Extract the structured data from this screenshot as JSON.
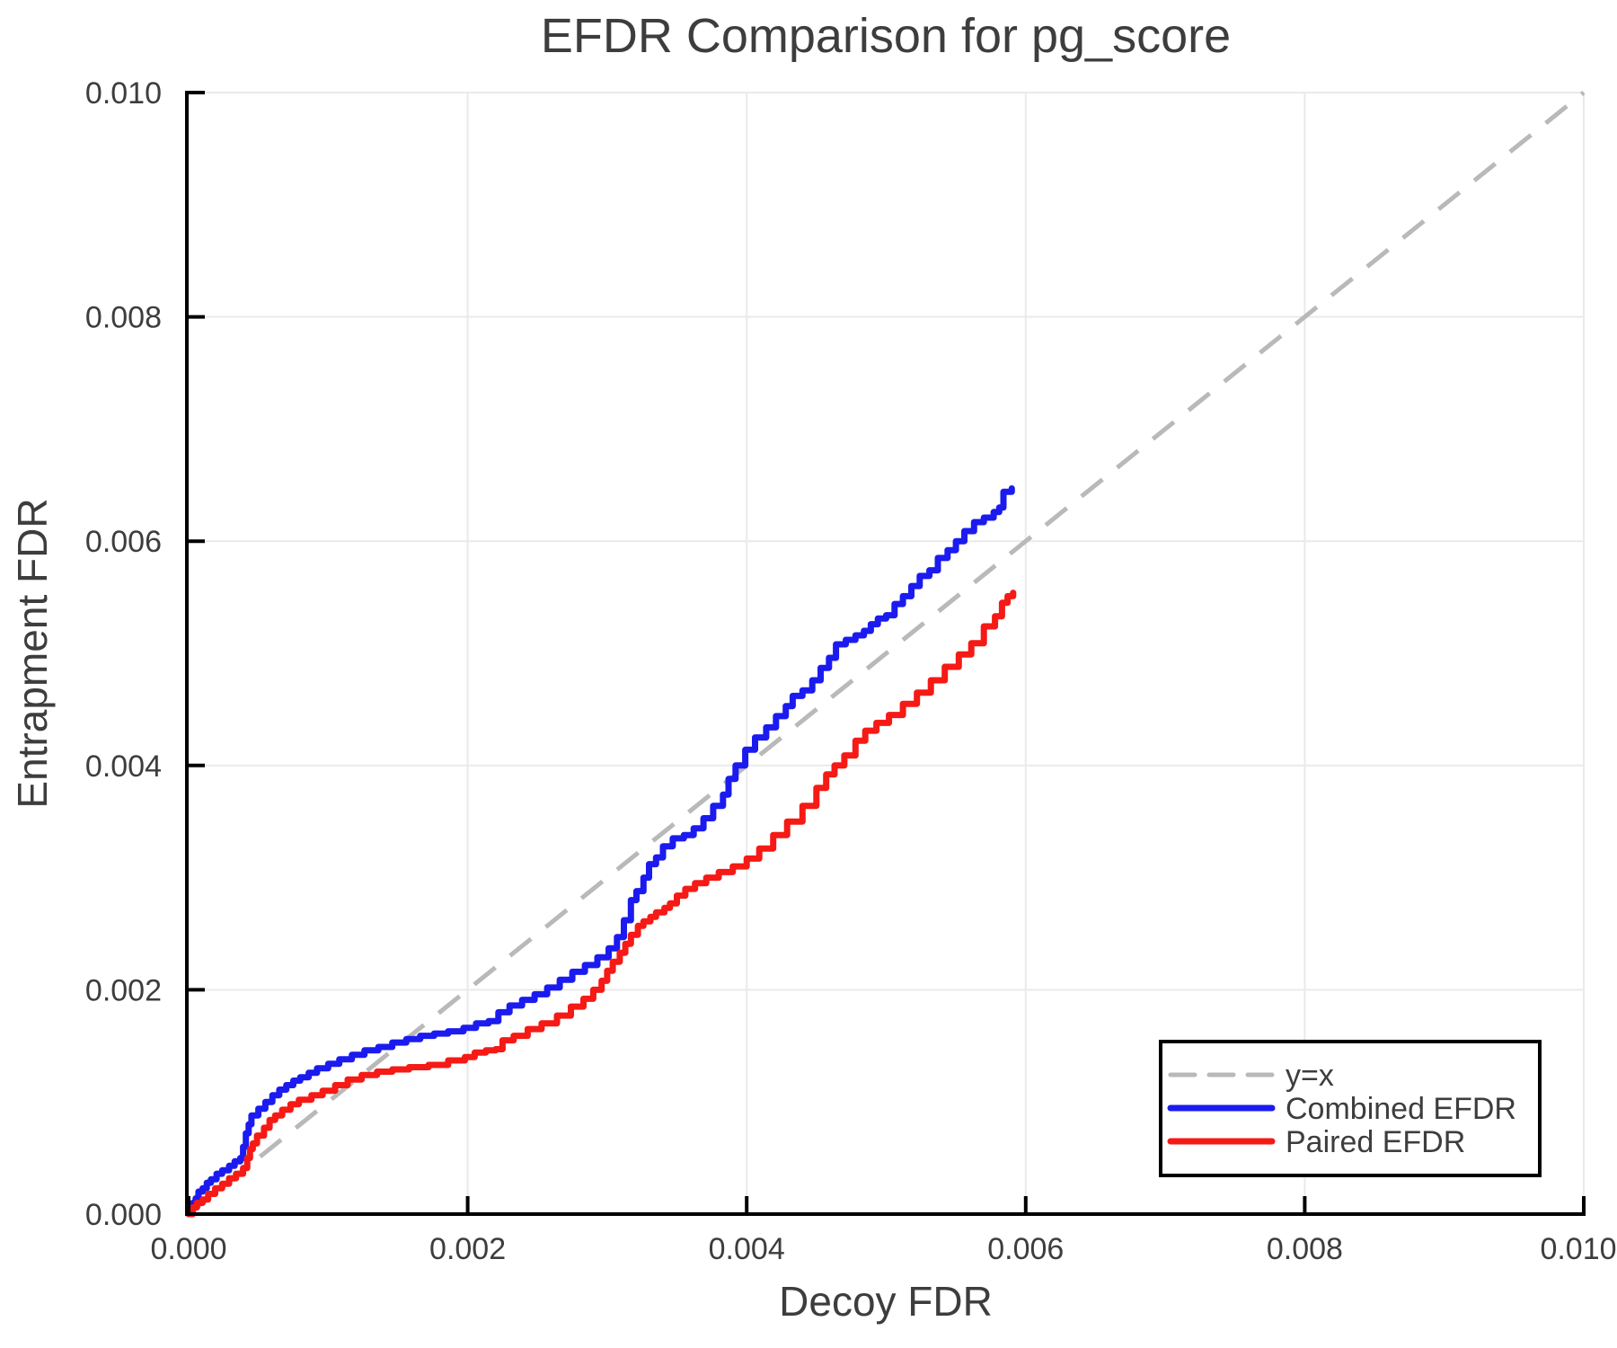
{
  "title": "EFDR Comparison for pg_score",
  "axes": {
    "x": {
      "label": "Decoy FDR",
      "tick_labels": [
        "0.000",
        "0.002",
        "0.004",
        "0.006",
        "0.008",
        "0.010"
      ],
      "tick_values": [
        0,
        0.002,
        0.004,
        0.006,
        0.008,
        0.01
      ]
    },
    "y": {
      "label": "Entrapment FDR",
      "tick_labels": [
        "0.000",
        "0.002",
        "0.004",
        "0.006",
        "0.008",
        "0.010"
      ],
      "tick_values": [
        0,
        0.002,
        0.004,
        0.006,
        0.008,
        0.01
      ]
    }
  },
  "legend": {
    "entries": [
      {
        "label": "y=x",
        "color": "#b9b9b9",
        "dashed": true
      },
      {
        "label": "Combined EFDR",
        "color": "#1b1bef",
        "dashed": false
      },
      {
        "label": "Paired EFDR",
        "color": "#f51a15",
        "dashed": false
      }
    ]
  },
  "colors": {
    "combined": "#1b1bef",
    "paired": "#f51a15",
    "reference": "#b9b9b9",
    "grid": "#eaeaea",
    "text": "#3d3d3d",
    "spine": "#000000"
  },
  "chart_data": {
    "type": "line",
    "title": "EFDR Comparison for pg_score",
    "xlabel": "Decoy FDR",
    "ylabel": "Entrapment FDR",
    "xlim": [
      0,
      0.01
    ],
    "ylim": [
      0,
      0.01
    ],
    "grid": true,
    "legend_position": "lower right",
    "reference_line": {
      "name": "y=x",
      "points": [
        [
          0,
          0
        ],
        [
          0.01,
          0.01
        ]
      ]
    },
    "series": [
      {
        "name": "Combined EFDR",
        "color": "#1b1bef",
        "style": "step",
        "points": [
          [
            0.0,
            0.0
          ],
          [
            2e-05,
            6e-05
          ],
          [
            3e-05,
            0.0001
          ],
          [
            5e-05,
            0.00014
          ],
          [
            7e-05,
            0.0002
          ],
          [
            0.0001,
            0.00023
          ],
          [
            0.00013,
            0.00028
          ],
          [
            0.00016,
            0.00031
          ],
          [
            0.0002,
            0.00036
          ],
          [
            0.00024,
            0.00039
          ],
          [
            0.00029,
            0.00043
          ],
          [
            0.00033,
            0.00047
          ],
          [
            0.00037,
            0.0005
          ],
          [
            0.00039,
            0.0006
          ],
          [
            0.00041,
            0.00072
          ],
          [
            0.00043,
            0.0008
          ],
          [
            0.00045,
            0.00088
          ],
          [
            0.0005,
            0.00094
          ],
          [
            0.00055,
            0.001
          ],
          [
            0.0006,
            0.00106
          ],
          [
            0.00065,
            0.00111
          ],
          [
            0.0007,
            0.00115
          ],
          [
            0.00075,
            0.00119
          ],
          [
            0.0008,
            0.00122
          ],
          [
            0.00086,
            0.00126
          ],
          [
            0.00092,
            0.0013
          ],
          [
            0.001,
            0.00134
          ],
          [
            0.00108,
            0.00138
          ],
          [
            0.00117,
            0.00142
          ],
          [
            0.00126,
            0.00146
          ],
          [
            0.00136,
            0.00149
          ],
          [
            0.00146,
            0.00153
          ],
          [
            0.00156,
            0.00156
          ],
          [
            0.00166,
            0.00159
          ],
          [
            0.00176,
            0.00161
          ],
          [
            0.00186,
            0.00163
          ],
          [
            0.00197,
            0.00166
          ],
          [
            0.00206,
            0.0017
          ],
          [
            0.00215,
            0.00172
          ],
          [
            0.00222,
            0.0018
          ],
          [
            0.0023,
            0.00186
          ],
          [
            0.00239,
            0.00191
          ],
          [
            0.00248,
            0.00196
          ],
          [
            0.00257,
            0.00202
          ],
          [
            0.00266,
            0.00209
          ],
          [
            0.00275,
            0.00216
          ],
          [
            0.00284,
            0.00222
          ],
          [
            0.00293,
            0.00229
          ],
          [
            0.00301,
            0.00237
          ],
          [
            0.00307,
            0.00247
          ],
          [
            0.00312,
            0.00262
          ],
          [
            0.00317,
            0.0028
          ],
          [
            0.00321,
            0.00288
          ],
          [
            0.00326,
            0.003
          ],
          [
            0.0033,
            0.00312
          ],
          [
            0.00335,
            0.00318
          ],
          [
            0.0034,
            0.00328
          ],
          [
            0.00347,
            0.00335
          ],
          [
            0.00355,
            0.00338
          ],
          [
            0.00362,
            0.00344
          ],
          [
            0.00369,
            0.00353
          ],
          [
            0.00376,
            0.00364
          ],
          [
            0.00383,
            0.00374
          ],
          [
            0.00387,
            0.00388
          ],
          [
            0.00392,
            0.004
          ],
          [
            0.00399,
            0.00414
          ],
          [
            0.00406,
            0.00425
          ],
          [
            0.00414,
            0.00434
          ],
          [
            0.00421,
            0.00444
          ],
          [
            0.00428,
            0.00453
          ],
          [
            0.00433,
            0.00462
          ],
          [
            0.0044,
            0.00467
          ],
          [
            0.00447,
            0.00476
          ],
          [
            0.00453,
            0.00487
          ],
          [
            0.00459,
            0.00496
          ],
          [
            0.00464,
            0.00508
          ],
          [
            0.00471,
            0.00512
          ],
          [
            0.00478,
            0.00516
          ],
          [
            0.00484,
            0.0052
          ],
          [
            0.00489,
            0.00526
          ],
          [
            0.00494,
            0.00531
          ],
          [
            0.005,
            0.00534
          ],
          [
            0.00506,
            0.00544
          ],
          [
            0.00512,
            0.00551
          ],
          [
            0.00518,
            0.0056
          ],
          [
            0.00524,
            0.00569
          ],
          [
            0.00531,
            0.00574
          ],
          [
            0.00537,
            0.00585
          ],
          [
            0.00544,
            0.00592
          ],
          [
            0.0055,
            0.006
          ],
          [
            0.00556,
            0.00609
          ],
          [
            0.00563,
            0.00617
          ],
          [
            0.0057,
            0.00621
          ],
          [
            0.00577,
            0.00626
          ],
          [
            0.00581,
            0.0063
          ],
          [
            0.00584,
            0.00644
          ],
          [
            0.0059,
            0.00647
          ]
        ]
      },
      {
        "name": "Paired EFDR",
        "color": "#f51a15",
        "style": "step",
        "points": [
          [
            0.0,
            0.0
          ],
          [
            3e-05,
            6e-05
          ],
          [
            6e-05,
            0.0001
          ],
          [
            0.0001,
            0.00013
          ],
          [
            0.00014,
            0.00018
          ],
          [
            0.00019,
            0.00023
          ],
          [
            0.00024,
            0.00027
          ],
          [
            0.00029,
            0.00032
          ],
          [
            0.00034,
            0.00036
          ],
          [
            0.00039,
            0.00041
          ],
          [
            0.00042,
            0.0005
          ],
          [
            0.00044,
            0.00058
          ],
          [
            0.00046,
            0.00063
          ],
          [
            0.00049,
            0.0007
          ],
          [
            0.00054,
            0.00077
          ],
          [
            0.00058,
            0.00084
          ],
          [
            0.00062,
            0.00088
          ],
          [
            0.00067,
            0.00093
          ],
          [
            0.00073,
            0.00098
          ],
          [
            0.00079,
            0.00102
          ],
          [
            0.00088,
            0.00106
          ],
          [
            0.00096,
            0.0011
          ],
          [
            0.00105,
            0.00115
          ],
          [
            0.00114,
            0.0012
          ],
          [
            0.00124,
            0.00124
          ],
          [
            0.00135,
            0.00127
          ],
          [
            0.00146,
            0.00129
          ],
          [
            0.00158,
            0.00131
          ],
          [
            0.00172,
            0.00133
          ],
          [
            0.00186,
            0.00137
          ],
          [
            0.00198,
            0.0014
          ],
          [
            0.00205,
            0.00144
          ],
          [
            0.00213,
            0.00146
          ],
          [
            0.0022,
            0.00147
          ],
          [
            0.00225,
            0.00155
          ],
          [
            0.00233,
            0.00159
          ],
          [
            0.00243,
            0.00165
          ],
          [
            0.00253,
            0.0017
          ],
          [
            0.00264,
            0.00177
          ],
          [
            0.00274,
            0.00185
          ],
          [
            0.00283,
            0.00192
          ],
          [
            0.0029,
            0.002
          ],
          [
            0.00296,
            0.00208
          ],
          [
            0.003,
            0.00217
          ],
          [
            0.00304,
            0.00225
          ],
          [
            0.00309,
            0.00233
          ],
          [
            0.00313,
            0.00241
          ],
          [
            0.00317,
            0.00249
          ],
          [
            0.00322,
            0.00257
          ],
          [
            0.00326,
            0.00261
          ],
          [
            0.00331,
            0.00265
          ],
          [
            0.00335,
            0.00269
          ],
          [
            0.00341,
            0.00273
          ],
          [
            0.00345,
            0.00277
          ],
          [
            0.0035,
            0.00284
          ],
          [
            0.00356,
            0.0029
          ],
          [
            0.00363,
            0.00295
          ],
          [
            0.00371,
            0.003
          ],
          [
            0.0038,
            0.00305
          ],
          [
            0.0039,
            0.0031
          ],
          [
            0.004,
            0.00317
          ],
          [
            0.00409,
            0.00326
          ],
          [
            0.00419,
            0.00338
          ],
          [
            0.00429,
            0.0035
          ],
          [
            0.0044,
            0.00364
          ],
          [
            0.0045,
            0.0038
          ],
          [
            0.00457,
            0.00392
          ],
          [
            0.00463,
            0.004
          ],
          [
            0.0047,
            0.00409
          ],
          [
            0.00478,
            0.00422
          ],
          [
            0.00485,
            0.00431
          ],
          [
            0.00493,
            0.00438
          ],
          [
            0.00502,
            0.00445
          ],
          [
            0.00512,
            0.00455
          ],
          [
            0.00522,
            0.00465
          ],
          [
            0.00532,
            0.00476
          ],
          [
            0.00542,
            0.00488
          ],
          [
            0.00552,
            0.00499
          ],
          [
            0.00561,
            0.00509
          ],
          [
            0.0057,
            0.00524
          ],
          [
            0.00578,
            0.00533
          ],
          [
            0.00583,
            0.00545
          ],
          [
            0.00587,
            0.00551
          ],
          [
            0.00591,
            0.00554
          ]
        ]
      }
    ]
  }
}
